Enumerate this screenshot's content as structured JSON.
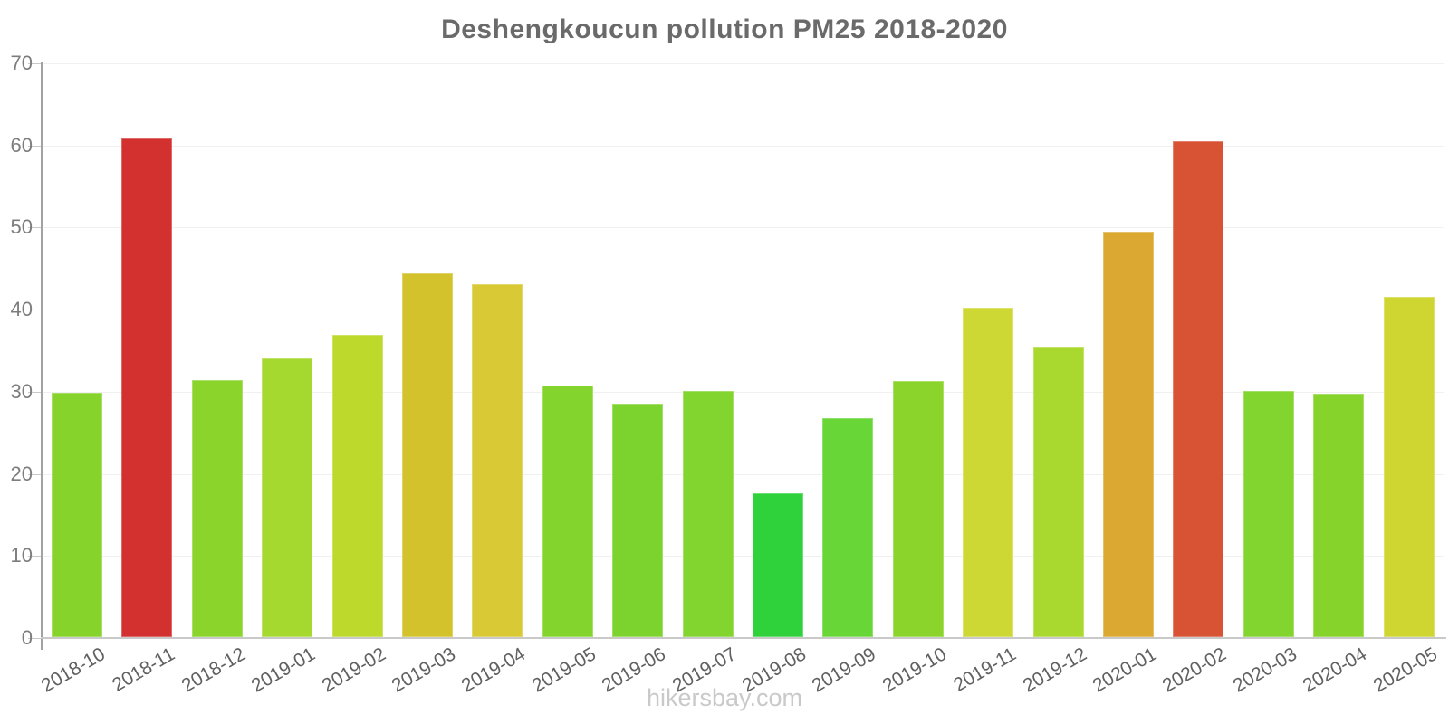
{
  "page": {
    "footer": "hikersbay.com"
  },
  "chart_data": {
    "type": "bar",
    "title": "Deshengkoucun pollution PM25 2018-2020",
    "xlabel": "",
    "ylabel": "",
    "ylim": [
      0,
      70
    ],
    "yticks": [
      0,
      10,
      20,
      30,
      40,
      50,
      60,
      70
    ],
    "grid": true,
    "legend": false,
    "categories": [
      "2018-10",
      "2018-11",
      "2018-12",
      "2019-01",
      "2019-02",
      "2019-03",
      "2019-04",
      "2019-05",
      "2019-06",
      "2019-07",
      "2019-08",
      "2019-09",
      "2019-10",
      "2019-11",
      "2019-12",
      "2020-01",
      "2020-02",
      "2020-03",
      "2020-04",
      "2020-05"
    ],
    "values": [
      29.8,
      60.7,
      31.3,
      33.9,
      36.8,
      44.3,
      43.0,
      30.6,
      28.4,
      30.0,
      17.5,
      26.7,
      31.2,
      40.1,
      35.4,
      49.4,
      60.4,
      30.0,
      29.7,
      41.5
    ],
    "bar_colors": [
      "#86D32C",
      "#D33030",
      "#8BD42C",
      "#A6D92F",
      "#BDD92C",
      "#D3C22B",
      "#D8C935",
      "#83D52D",
      "#7DD32E",
      "#82D52E",
      "#30D23B",
      "#67D636",
      "#8BD42C",
      "#CDD835",
      "#A9D92E",
      "#DBA832",
      "#D85234",
      "#82D52E",
      "#86D32C",
      "#CFD632"
    ]
  },
  "style": {
    "axis_color": "#a2a2a2",
    "baseline_color": "#c9c9c9",
    "grid_color": "#f0f0f0",
    "title_color": "#6a6a6a",
    "tick_label_color": "#7d7d7d",
    "x_label_color": "#606060",
    "footer_color": "#c9c9c9"
  }
}
